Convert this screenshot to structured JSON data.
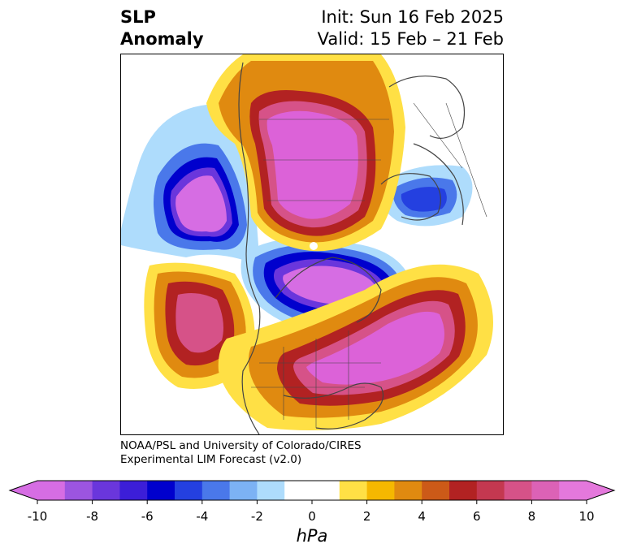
{
  "title": {
    "line1": "SLP",
    "line2": "Anomaly",
    "init": "Init: Sun 16 Feb 2025",
    "valid": "Valid: 15 Feb – 21 Feb"
  },
  "credits": {
    "line1": "NOAA/PSL and University of Colorado/CIRES",
    "line2": "Experimental LIM Forecast (v2.0)"
  },
  "colorbar": {
    "units": "hPa",
    "tick_labels": [
      "-10",
      "-8",
      "-6",
      "-4",
      "-2",
      "0",
      "2",
      "4",
      "6",
      "8",
      "10"
    ],
    "colors": [
      "#d66de3",
      "#9c55e0",
      "#6a36dc",
      "#3c1ed8",
      "#0000cd",
      "#2440e0",
      "#4a78ea",
      "#7cb2f4",
      "#aedcfc",
      "#ffffff",
      "#ffffff",
      "#ffe045",
      "#f5b800",
      "#e08a10",
      "#cc5a18",
      "#b22222",
      "#c43850",
      "#d65288",
      "#dc62b6",
      "#e478dc"
    ],
    "under_color": "#d66de3",
    "over_color": "#e478dc"
  },
  "map": {
    "fill_colors": {
      "neg_outer": "#aedcfc",
      "neg_2": "#7cb2f4",
      "neg_3": "#4a78ea",
      "neg_4": "#2440e0",
      "neg_5": "#0000cd",
      "neg_6": "#3c1ed8",
      "neg_7": "#6a36dc",
      "neg_8": "#9c55e0",
      "neg_core": "#d66de3",
      "pos_outer": "#ffe045",
      "pos_2": "#f5b800",
      "pos_3": "#e08a10",
      "pos_4": "#cc5a18",
      "pos_5": "#b22222",
      "pos_6": "#c43850",
      "pos_7": "#d65288",
      "pos_core": "#dc62d8"
    },
    "coastline_color": "#444444"
  }
}
